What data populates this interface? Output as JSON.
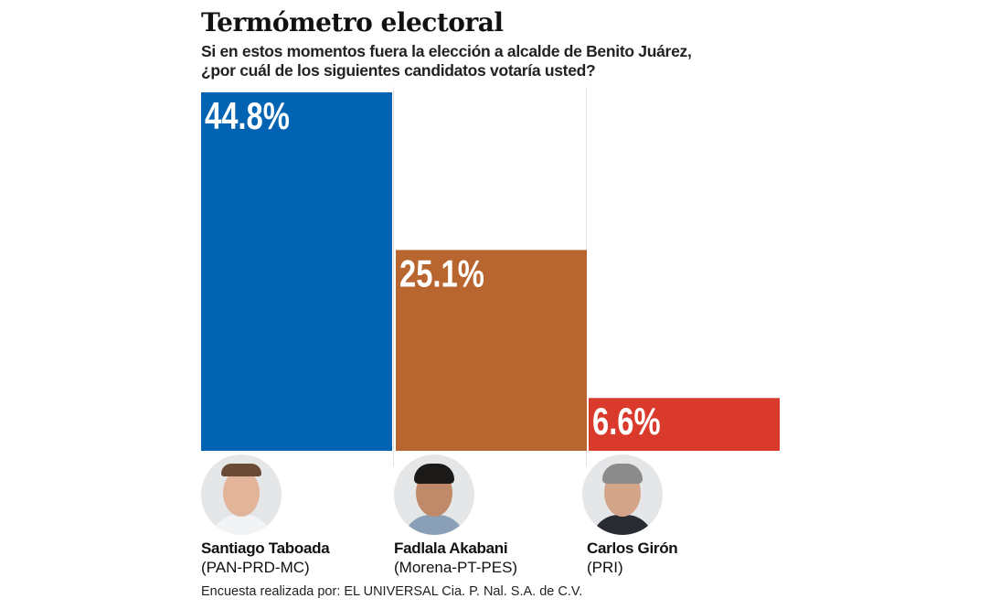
{
  "chart_data": {
    "type": "bar",
    "title": "Termómetro electoral",
    "subtitle_lines": [
      "Si en estos momentos fuera la elección a alcalde de Benito Juárez,",
      "¿por cuál de los siguientes candidatos votaría usted?"
    ],
    "categories": [
      "Santiago Taboada",
      "Fadlala Akabani",
      "Carlos Girón"
    ],
    "parties": [
      "(PAN-PRD-MC)",
      "(Morena-PT-PES)",
      "(PRI)"
    ],
    "values": [
      44.8,
      25.1,
      6.6
    ],
    "data_labels": [
      "44.8%",
      "25.1%",
      "6.6%"
    ],
    "colors": [
      "#0163b2",
      "#b96530",
      "#d93a2b"
    ],
    "unit": "%",
    "ylim": [
      0,
      44.8
    ],
    "grid": false,
    "source": "Encuesta realizada por: EL UNIVERSAL Cia. P. Nal. S.A. de C.V."
  }
}
